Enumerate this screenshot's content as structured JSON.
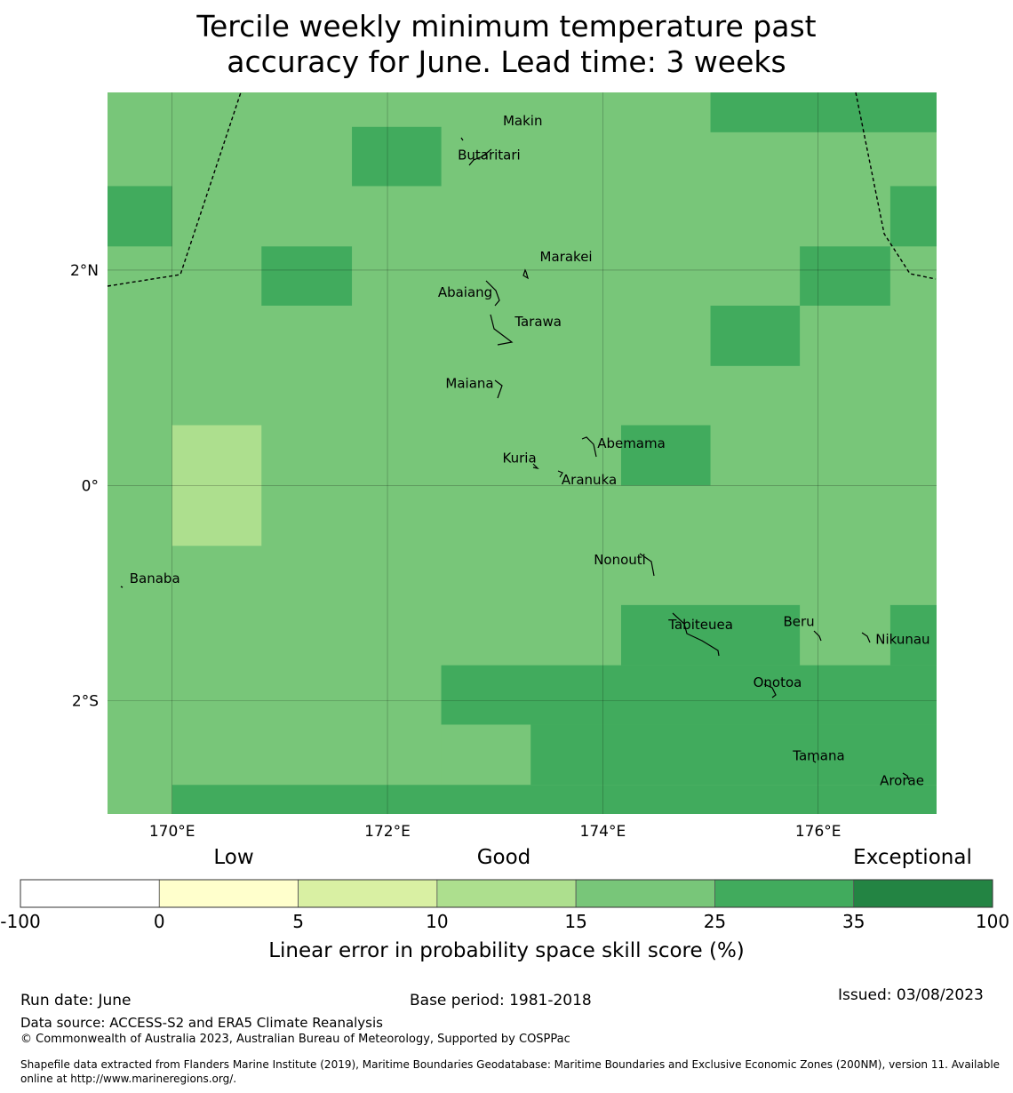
{
  "title_line1": "Tercile weekly minimum temperature past",
  "title_line2": "accuracy for June. Lead time: 3 weeks",
  "map": {
    "lon_range": [
      169.4,
      177.1
    ],
    "lat_range": [
      -3.05,
      3.65
    ],
    "lon_ticks": [
      {
        "value": 170,
        "label": "170°E"
      },
      {
        "value": 172,
        "label": "172°E"
      },
      {
        "value": 174,
        "label": "174°E"
      },
      {
        "value": 176,
        "label": "176°E"
      }
    ],
    "lat_ticks": [
      {
        "value": 2,
        "label": "2°N"
      },
      {
        "value": 0,
        "label": "0°"
      },
      {
        "value": -2,
        "label": "2°S"
      }
    ],
    "grid_lines": true,
    "cell_category_colors": {
      "10-15": "#addf8e",
      "15-25": "#78c679",
      "25-35": "#41ab5d"
    },
    "background_category": "15-25",
    "cells": [
      {
        "lon0": 175.0,
        "lon1": 177.1,
        "lat0": 3.28,
        "lat1": 3.65,
        "category": "25-35"
      },
      {
        "lon0": 171.67,
        "lon1": 172.5,
        "lat0": 2.78,
        "lat1": 3.33,
        "category": "25-35"
      },
      {
        "lon0": 169.4,
        "lon1": 170.0,
        "lat0": 2.22,
        "lat1": 2.78,
        "category": "25-35"
      },
      {
        "lon0": 176.67,
        "lon1": 177.1,
        "lat0": 2.22,
        "lat1": 2.78,
        "category": "25-35"
      },
      {
        "lon0": 170.83,
        "lon1": 171.67,
        "lat0": 1.67,
        "lat1": 2.22,
        "category": "25-35"
      },
      {
        "lon0": 175.83,
        "lon1": 176.67,
        "lat0": 1.67,
        "lat1": 2.22,
        "category": "25-35"
      },
      {
        "lon0": 175.0,
        "lon1": 175.83,
        "lat0": 1.11,
        "lat1": 1.67,
        "category": "25-35"
      },
      {
        "lon0": 170.0,
        "lon1": 170.83,
        "lat0": -0.56,
        "lat1": 0.56,
        "category": "10-15"
      },
      {
        "lon0": 174.17,
        "lon1": 175.0,
        "lat0": 0.0,
        "lat1": 0.56,
        "category": "25-35"
      },
      {
        "lon0": 174.17,
        "lon1": 175.83,
        "lat0": -1.67,
        "lat1": -1.11,
        "category": "25-35"
      },
      {
        "lon0": 176.67,
        "lon1": 177.1,
        "lat0": -1.67,
        "lat1": -1.11,
        "category": "25-35"
      },
      {
        "lon0": 172.5,
        "lon1": 177.1,
        "lat0": -2.22,
        "lat1": -1.67,
        "category": "25-35"
      },
      {
        "lon0": 172.5,
        "lon1": 173.33,
        "lat0": -2.22,
        "lat1": -2.22,
        "category": "25-35"
      },
      {
        "lon0": 172.5,
        "lon1": 177.1,
        "lat0": -2.22,
        "lat1": -2.22,
        "category": "25-35"
      },
      {
        "lon0": 172.5,
        "lon1": 173.33,
        "lat0": -2.78,
        "lat1": -2.22,
        "category": "15-25"
      },
      {
        "lon0": 173.33,
        "lon1": 177.1,
        "lat0": -2.78,
        "lat1": -2.22,
        "category": "25-35"
      },
      {
        "lon0": 172.5,
        "lon1": 177.1,
        "lat0": -2.22,
        "lat1": -1.67,
        "category": "25-35"
      },
      {
        "lon0": 170.0,
        "lon1": 177.1,
        "lat0": -3.05,
        "lat1": -2.78,
        "category": "25-35"
      }
    ],
    "islands": [
      {
        "name": "Makin",
        "lon": 172.99,
        "lat": 3.32
      },
      {
        "name": "Butaritari",
        "lon": 172.9,
        "lat": 3.1
      },
      {
        "name": "Marakei",
        "lon": 173.3,
        "lat": 2.0
      },
      {
        "name": "Abaiang",
        "lon": 173.0,
        "lat": 1.8
      },
      {
        "name": "Tarawa",
        "lon": 173.1,
        "lat": 1.43
      },
      {
        "name": "Maiana",
        "lon": 173.02,
        "lat": 0.93
      },
      {
        "name": "Abemama",
        "lon": 173.85,
        "lat": 0.4
      },
      {
        "name": "Kuria",
        "lon": 173.4,
        "lat": 0.24
      },
      {
        "name": "Aranuka",
        "lon": 173.6,
        "lat": 0.16
      },
      {
        "name": "Banaba",
        "lon": 169.53,
        "lat": -0.87
      },
      {
        "name": "Nonouti",
        "lon": 174.4,
        "lat": -0.65
      },
      {
        "name": "Tabiteuea",
        "lon": 174.8,
        "lat": -1.3
      },
      {
        "name": "Beru",
        "lon": 176.0,
        "lat": -1.33
      },
      {
        "name": "Nikunau",
        "lon": 176.45,
        "lat": -1.38
      },
      {
        "name": "Onotoa",
        "lon": 175.57,
        "lat": -1.82
      },
      {
        "name": "Tamana",
        "lon": 175.98,
        "lat": -2.5
      },
      {
        "name": "Arorae",
        "lon": 176.82,
        "lat": -2.65
      }
    ]
  },
  "legend": {
    "category_labels": [
      "Low",
      "Good",
      "Exceptional"
    ],
    "tick_labels": [
      "-100",
      "0",
      "5",
      "10",
      "15",
      "25",
      "35",
      "100"
    ],
    "colors": [
      "#ffffff",
      "#ffffcc",
      "#d9f0a3",
      "#addf8e",
      "#78c679",
      "#41ab5d",
      "#238443"
    ],
    "xlabel": "Linear error in probability space skill score (%)"
  },
  "footer": {
    "run_date": "Run date: June",
    "base_period": "Base period: 1981-2018",
    "issued": "Issued: 03/08/2023",
    "data_source": "Data source: ACCESS-S2 and ERA5 Climate Reanalysis",
    "copyright": "© Commonwealth of Australia 2023, Australian Bureau of Meteorology, Supported by COSPPac",
    "shapefile_line1": "Shapefile data extracted from Flanders Marine Institute (2019), Maritime Boundaries Geodatabase: Maritime Boundaries and Exclusive Economic Zones (200NM), version 11. Available",
    "shapefile_line2": "online at http://www.marineregions.org/."
  }
}
